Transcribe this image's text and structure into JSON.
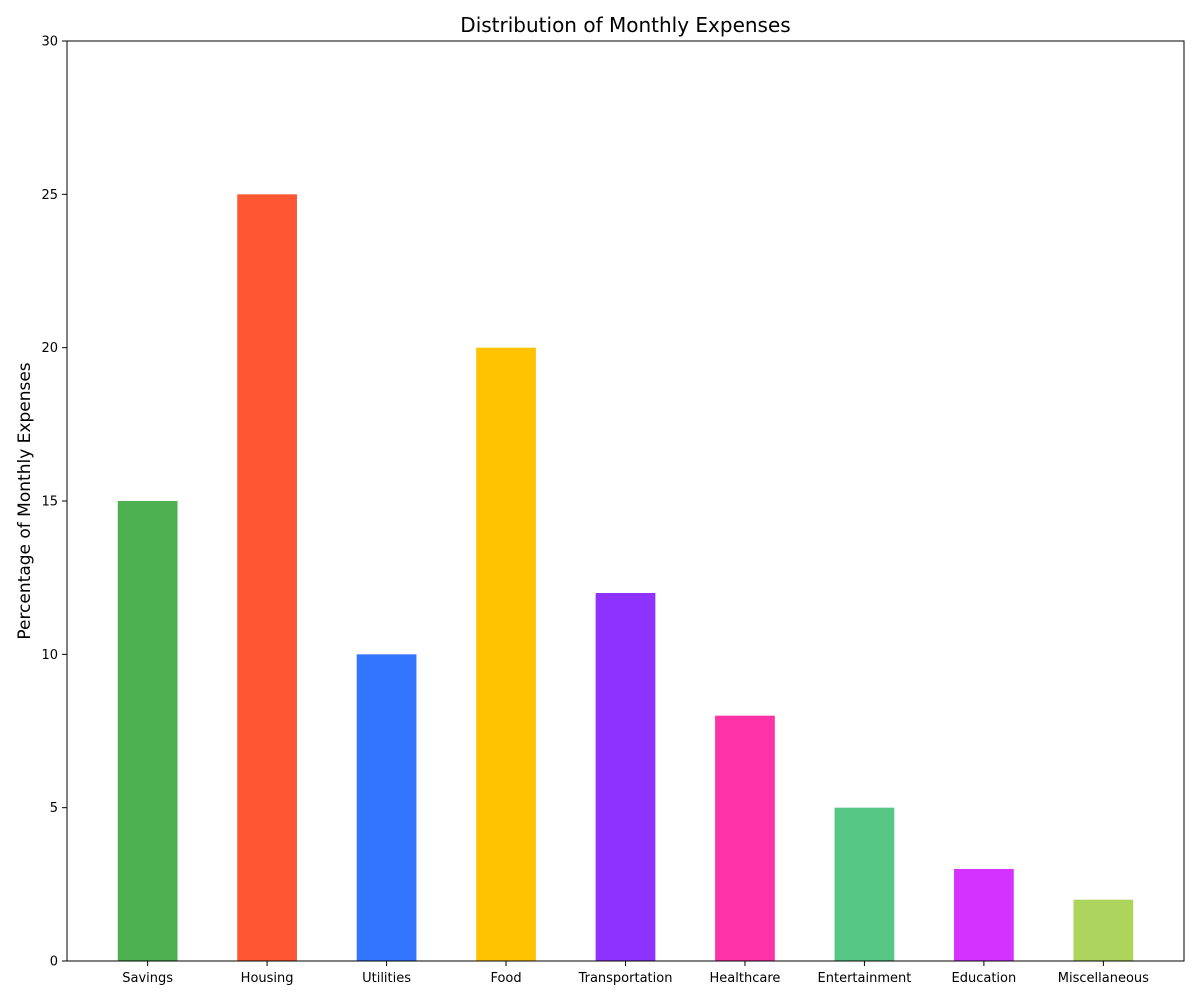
{
  "chart_data": {
    "type": "bar",
    "title": "Distribution of Monthly Expenses",
    "xlabel": "",
    "ylabel": "Percentage of Monthly Expenses",
    "categories": [
      "Savings",
      "Housing",
      "Utilities",
      "Food",
      "Transportation",
      "Healthcare",
      "Entertainment",
      "Education",
      "Miscellaneous"
    ],
    "values": [
      15,
      25,
      10,
      20,
      12,
      8,
      5,
      3,
      2
    ],
    "colors": [
      "#4caf50",
      "#ff5733",
      "#3375ff",
      "#ffc300",
      "#8e33ff",
      "#ff33a8",
      "#57c785",
      "#d433ff",
      "#add45c"
    ],
    "ylim": [
      0,
      30
    ],
    "yticks": [
      "0",
      "5",
      "10",
      "15",
      "20",
      "25",
      "30"
    ],
    "grid": false,
    "legend": "none"
  }
}
